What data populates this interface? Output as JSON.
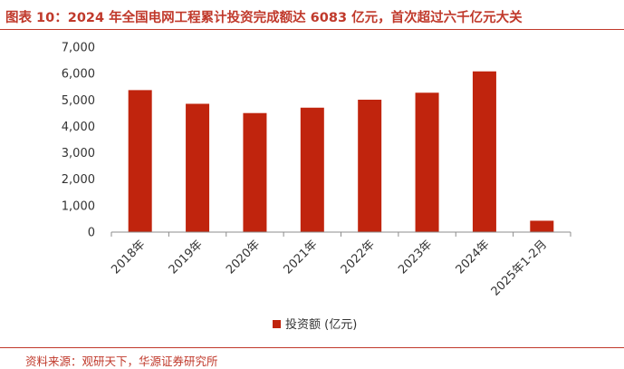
{
  "figure_title": "图表 10：2024 年全国电网工程累计投资完成额达 6083 亿元，首次超过六千亿元大关",
  "source_note": "资料来源：观研天下，华源证券研究所",
  "colors": {
    "accent": "#c0392b",
    "bar": "#c0240d"
  },
  "chart_data": {
    "type": "bar",
    "title": "",
    "xlabel": "",
    "ylabel": "",
    "categories": [
      "2018年",
      "2019年",
      "2020年",
      "2021年",
      "2022年",
      "2023年",
      "2024年",
      "2025年1-2月"
    ],
    "series": [
      {
        "name": "投资额 (亿元)",
        "values": [
          5374,
          4856,
          4505,
          4709,
          5011,
          5275,
          6083,
          430
        ]
      }
    ],
    "ylim": [
      0,
      7000
    ],
    "yticks": [
      "0",
      "1,000",
      "2,000",
      "3,000",
      "4,000",
      "5,000",
      "6,000",
      "7,000"
    ],
    "grid": false,
    "legend": "bottom-center"
  }
}
